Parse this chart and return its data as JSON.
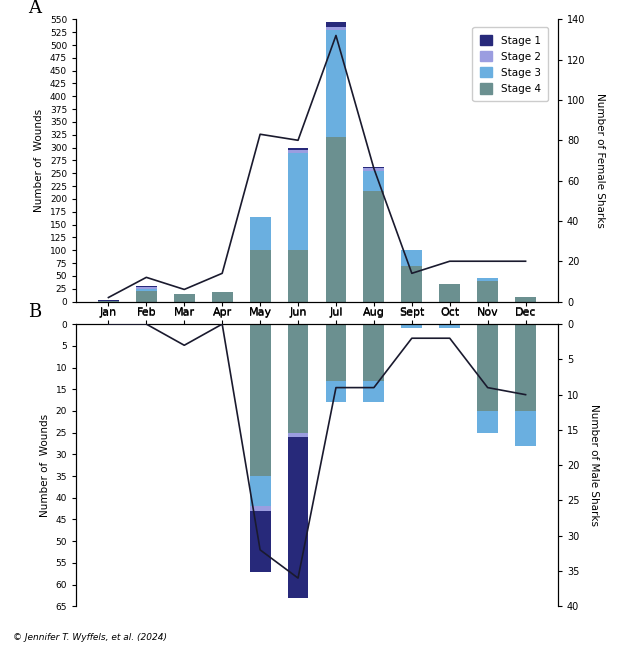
{
  "months": [
    "Jan",
    "Feb",
    "Mar",
    "Apr",
    "May",
    "Jun",
    "Jul",
    "Aug",
    "Sept",
    "Oct",
    "Nov",
    "Dec"
  ],
  "panel_A": {
    "stage4": [
      2,
      20,
      15,
      18,
      100,
      100,
      320,
      215,
      70,
      35,
      40,
      8
    ],
    "stage3": [
      0,
      5,
      0,
      0,
      65,
      190,
      210,
      40,
      30,
      0,
      5,
      0
    ],
    "stage2": [
      0,
      3,
      0,
      0,
      0,
      5,
      5,
      5,
      0,
      0,
      0,
      0
    ],
    "stage1": [
      1,
      2,
      0,
      0,
      0,
      5,
      10,
      2,
      0,
      0,
      0,
      0
    ],
    "line": [
      2,
      12,
      6,
      14,
      83,
      80,
      132,
      66,
      14,
      20,
      20,
      20
    ]
  },
  "panel_B": {
    "stage4": [
      0,
      0,
      0,
      0,
      35,
      25,
      13,
      13,
      0,
      0,
      20,
      20
    ],
    "stage3": [
      0,
      0,
      0,
      0,
      7,
      0,
      5,
      5,
      1,
      1,
      5,
      8
    ],
    "stage2": [
      0,
      0,
      0,
      0,
      1,
      1,
      0,
      0,
      0,
      0,
      0,
      0
    ],
    "stage1": [
      0,
      0,
      0,
      0,
      14,
      37,
      0,
      0,
      0,
      0,
      0,
      0
    ],
    "line": [
      0,
      0,
      3,
      0,
      32,
      36,
      9,
      9,
      2,
      2,
      9,
      10
    ]
  },
  "colors": {
    "stage1": "#27297a",
    "stage2": "#9b9de0",
    "stage3": "#6aafe0",
    "stage4": "#6b9090"
  },
  "label_A_left": "Number of  Wounds",
  "label_A_right": "Number of Female Sharks",
  "label_B_left": "Number of  Wounds",
  "label_B_right": "Number of Male Sharks",
  "yticks_A_left": [
    0,
    25,
    50,
    75,
    100,
    125,
    150,
    175,
    200,
    225,
    250,
    275,
    300,
    325,
    350,
    375,
    400,
    425,
    450,
    475,
    500,
    525,
    550
  ],
  "yticks_A_right": [
    0,
    20,
    40,
    60,
    80,
    100,
    120,
    140
  ],
  "yticks_B_left": [
    0,
    5,
    10,
    15,
    20,
    25,
    30,
    35,
    40,
    45,
    50,
    55,
    60,
    65
  ],
  "yticks_B_right": [
    0,
    5,
    10,
    15,
    20,
    25,
    30,
    35,
    40
  ],
  "copyright": "© Jennifer T. Wyffels, et al. (2024)"
}
